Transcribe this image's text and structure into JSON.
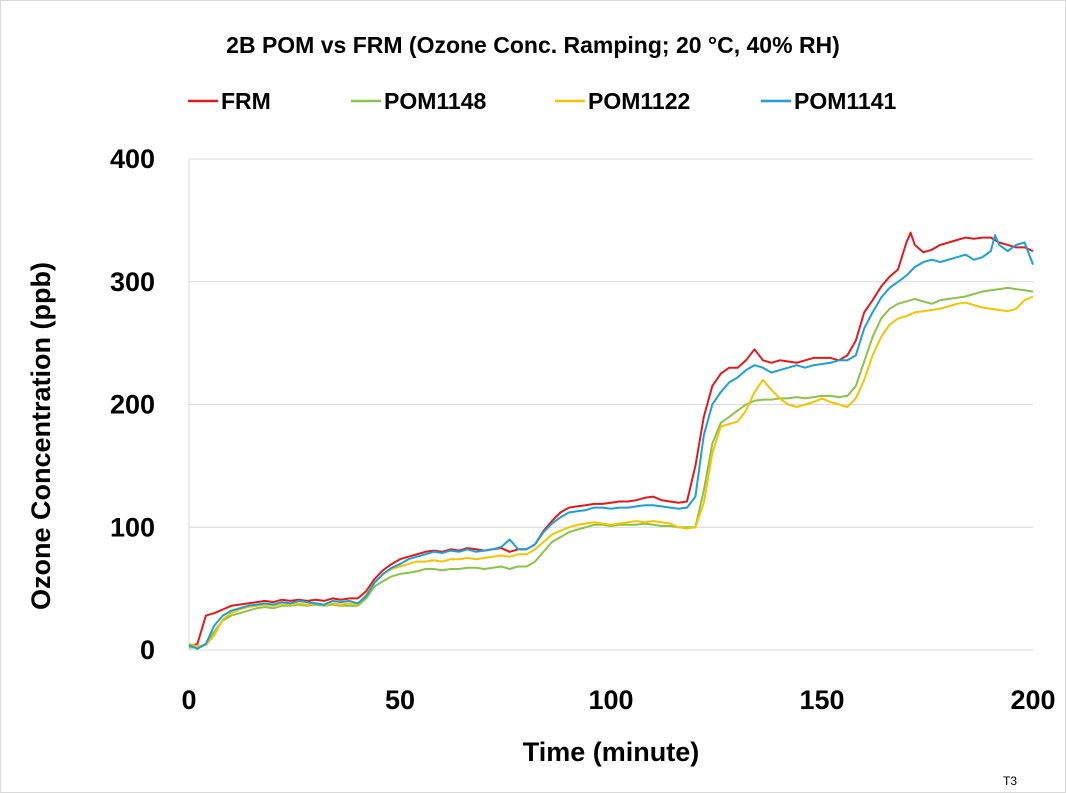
{
  "chart_data": {
    "type": "line",
    "title": "2B POM vs FRM (Ozone Conc. Ramping; 20 °C, 40% RH)",
    "xlabel": "Time (minute)",
    "ylabel": "Ozone Concentration (ppb)",
    "xlim": [
      0,
      200
    ],
    "ylim": [
      0,
      400
    ],
    "xticks": [
      0,
      50,
      100,
      150,
      200
    ],
    "yticks": [
      0,
      100,
      200,
      300,
      400
    ],
    "grid": "horizontal",
    "legend_position": "top",
    "note": "T3",
    "series": [
      {
        "name": "FRM",
        "color": "#e31a1c",
        "x": [
          0,
          2,
          4,
          6,
          8,
          10,
          12,
          14,
          16,
          18,
          20,
          22,
          24,
          26,
          28,
          30,
          32,
          34,
          36,
          38,
          40,
          42,
          44,
          46,
          48,
          50,
          52,
          54,
          56,
          58,
          60,
          62,
          64,
          66,
          68,
          70,
          72,
          74,
          76,
          78,
          80,
          82,
          84,
          86,
          88,
          90,
          92,
          94,
          96,
          98,
          100,
          102,
          104,
          106,
          108,
          110,
          112,
          114,
          116,
          118,
          120,
          122,
          124,
          126,
          128,
          130,
          132,
          134,
          136,
          138,
          140,
          142,
          144,
          146,
          148,
          150,
          152,
          154,
          156,
          158,
          160,
          162,
          164,
          166,
          168,
          170,
          171,
          172,
          174,
          176,
          178,
          180,
          182,
          184,
          186,
          188,
          190,
          192,
          194,
          196,
          198,
          200
        ],
        "y": [
          3,
          5,
          28,
          30,
          33,
          36,
          37,
          38,
          39,
          40,
          39,
          41,
          40,
          41,
          40,
          41,
          40,
          42,
          41,
          42,
          42,
          48,
          58,
          65,
          70,
          74,
          76,
          78,
          80,
          81,
          80,
          82,
          81,
          83,
          82,
          81,
          82,
          83,
          80,
          82,
          82,
          86,
          97,
          105,
          112,
          116,
          117,
          118,
          119,
          119,
          120,
          121,
          121,
          122,
          124,
          125,
          122,
          121,
          120,
          121,
          150,
          190,
          215,
          225,
          230,
          230,
          236,
          245,
          236,
          234,
          236,
          235,
          234,
          236,
          238,
          238,
          238,
          236,
          240,
          252,
          275,
          285,
          296,
          304,
          310,
          332,
          340,
          330,
          324,
          326,
          330,
          332,
          334,
          336,
          335,
          336,
          336,
          332,
          330,
          328,
          328,
          325
        ]
      },
      {
        "name": "POM1148",
        "color": "#8bc34a",
        "x": [
          0,
          2,
          4,
          6,
          8,
          10,
          12,
          14,
          16,
          18,
          20,
          22,
          24,
          26,
          28,
          30,
          32,
          34,
          36,
          38,
          40,
          42,
          44,
          46,
          48,
          50,
          52,
          54,
          56,
          58,
          60,
          62,
          64,
          66,
          68,
          70,
          72,
          74,
          76,
          78,
          80,
          82,
          84,
          86,
          88,
          90,
          92,
          94,
          96,
          98,
          100,
          102,
          104,
          106,
          108,
          110,
          112,
          114,
          116,
          118,
          120,
          122,
          124,
          126,
          128,
          130,
          132,
          134,
          136,
          138,
          140,
          142,
          144,
          146,
          148,
          150,
          152,
          154,
          156,
          158,
          160,
          162,
          164,
          166,
          168,
          170,
          172,
          174,
          176,
          178,
          180,
          182,
          184,
          186,
          188,
          190,
          192,
          194,
          196,
          198,
          200
        ],
        "y": [
          2,
          2,
          5,
          15,
          24,
          28,
          30,
          32,
          34,
          35,
          34,
          36,
          36,
          37,
          36,
          37,
          36,
          37,
          36,
          36,
          36,
          42,
          52,
          56,
          60,
          62,
          63,
          64,
          66,
          66,
          65,
          66,
          66,
          67,
          67,
          66,
          67,
          68,
          66,
          68,
          68,
          72,
          80,
          88,
          92,
          96,
          98,
          100,
          102,
          102,
          101,
          102,
          102,
          102,
          103,
          102,
          101,
          101,
          100,
          100,
          100,
          130,
          168,
          185,
          190,
          195,
          200,
          203,
          204,
          204,
          205,
          205,
          206,
          205,
          206,
          207,
          207,
          206,
          207,
          215,
          235,
          255,
          270,
          278,
          282,
          284,
          286,
          284,
          282,
          285,
          286,
          287,
          288,
          290,
          292,
          293,
          294,
          295,
          294,
          293,
          292
        ]
      },
      {
        "name": "POM1122",
        "color": "#f5c400",
        "x": [
          0,
          2,
          4,
          6,
          8,
          10,
          12,
          14,
          16,
          18,
          20,
          22,
          24,
          26,
          28,
          30,
          32,
          34,
          36,
          38,
          40,
          42,
          44,
          46,
          48,
          50,
          52,
          54,
          56,
          58,
          60,
          62,
          64,
          66,
          68,
          70,
          72,
          74,
          76,
          78,
          80,
          82,
          84,
          86,
          88,
          90,
          92,
          94,
          96,
          98,
          100,
          102,
          104,
          106,
          108,
          110,
          112,
          114,
          116,
          118,
          120,
          122,
          124,
          126,
          128,
          130,
          132,
          134,
          136,
          138,
          140,
          142,
          144,
          146,
          148,
          150,
          152,
          154,
          156,
          158,
          160,
          162,
          164,
          166,
          168,
          170,
          172,
          174,
          176,
          178,
          180,
          182,
          184,
          186,
          188,
          190,
          192,
          194,
          196,
          198,
          200
        ],
        "y": [
          5,
          3,
          4,
          12,
          25,
          30,
          33,
          35,
          36,
          37,
          36,
          38,
          37,
          38,
          37,
          38,
          37,
          38,
          37,
          38,
          37,
          45,
          55,
          62,
          66,
          68,
          70,
          72,
          72,
          73,
          72,
          74,
          74,
          75,
          74,
          75,
          76,
          77,
          76,
          78,
          78,
          82,
          88,
          94,
          97,
          100,
          102,
          103,
          104,
          103,
          102,
          103,
          104,
          105,
          104,
          105,
          104,
          103,
          100,
          99,
          100,
          120,
          160,
          182,
          184,
          186,
          195,
          210,
          220,
          212,
          205,
          200,
          198,
          200,
          202,
          205,
          202,
          200,
          198,
          205,
          220,
          240,
          255,
          265,
          270,
          272,
          275,
          276,
          277,
          278,
          280,
          282,
          283,
          281,
          279,
          278,
          277,
          276,
          278,
          285,
          288
        ]
      },
      {
        "name": "POM1141",
        "color": "#1ba1d7",
        "x": [
          0,
          2,
          4,
          6,
          8,
          10,
          12,
          14,
          16,
          18,
          20,
          22,
          24,
          26,
          28,
          30,
          32,
          34,
          36,
          38,
          40,
          42,
          44,
          46,
          48,
          50,
          52,
          54,
          56,
          58,
          60,
          62,
          64,
          66,
          68,
          70,
          72,
          74,
          76,
          78,
          80,
          82,
          84,
          86,
          88,
          90,
          92,
          94,
          96,
          98,
          100,
          102,
          104,
          106,
          108,
          110,
          112,
          114,
          116,
          118,
          120,
          122,
          124,
          126,
          128,
          130,
          132,
          134,
          136,
          138,
          140,
          142,
          144,
          146,
          148,
          150,
          152,
          154,
          156,
          158,
          160,
          162,
          164,
          166,
          168,
          170,
          172,
          174,
          176,
          178,
          180,
          182,
          184,
          186,
          188,
          190,
          191,
          192,
          194,
          196,
          198,
          200
        ],
        "y": [
          4,
          1,
          5,
          20,
          28,
          32,
          34,
          36,
          37,
          38,
          37,
          39,
          38,
          40,
          39,
          38,
          37,
          40,
          39,
          40,
          38,
          44,
          55,
          62,
          67,
          70,
          74,
          76,
          78,
          80,
          79,
          81,
          80,
          82,
          80,
          81,
          82,
          84,
          90,
          82,
          82,
          86,
          96,
          103,
          108,
          112,
          113,
          114,
          116,
          116,
          115,
          116,
          116,
          117,
          118,
          118,
          117,
          116,
          115,
          116,
          125,
          175,
          200,
          210,
          218,
          222,
          228,
          232,
          230,
          226,
          228,
          230,
          232,
          230,
          232,
          233,
          234,
          236,
          236,
          240,
          262,
          275,
          287,
          295,
          300,
          305,
          312,
          316,
          318,
          316,
          318,
          320,
          322,
          318,
          320,
          325,
          338,
          330,
          325,
          330,
          332,
          314
        ]
      }
    ]
  }
}
